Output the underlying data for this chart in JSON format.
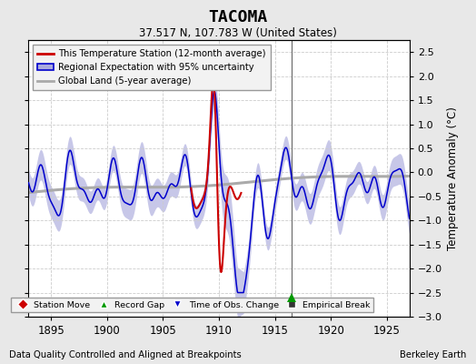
{
  "title": "TACOMA",
  "subtitle": "37.517 N, 107.783 W (United States)",
  "ylabel": "Temperature Anomaly (°C)",
  "xlabel_left": "Data Quality Controlled and Aligned at Breakpoints",
  "xlabel_right": "Berkeley Earth",
  "xlim": [
    1893,
    1927
  ],
  "ylim": [
    -3.0,
    2.75
  ],
  "yticks": [
    -3,
    -2.5,
    -2,
    -1.5,
    -1,
    -0.5,
    0,
    0.5,
    1,
    1.5,
    2,
    2.5
  ],
  "xticks": [
    1895,
    1900,
    1905,
    1910,
    1915,
    1920,
    1925
  ],
  "bg_color": "#e8e8e8",
  "plot_bg_color": "#ffffff",
  "grid_color": "#cccccc",
  "blue_line_color": "#0000cc",
  "red_line_color": "#cc0000",
  "gray_line_color": "#aaaaaa",
  "fill_color": "#aaaadd",
  "legend_entries": [
    "This Temperature Station (12-month average)",
    "Regional Expectation with 95% uncertainty",
    "Global Land (5-year average)"
  ],
  "marker_legend": [
    {
      "marker": "D",
      "color": "#cc0000",
      "label": "Station Move"
    },
    {
      "marker": "^",
      "color": "#009900",
      "label": "Record Gap"
    },
    {
      "marker": "v",
      "color": "#0000cc",
      "label": "Time of Obs. Change"
    },
    {
      "marker": "s",
      "color": "#333333",
      "label": "Empirical Break"
    }
  ],
  "vertical_line_x": 1916.5,
  "green_triangle_x": 1916.5,
  "green_triangle_y": -2.6
}
